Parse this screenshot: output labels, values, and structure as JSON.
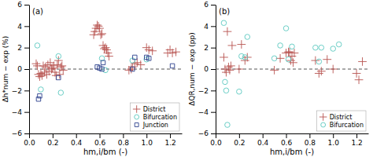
{
  "chart_data": [
    {
      "type": "scatter",
      "annotations": [
        "(a)"
      ],
      "xlabel": "hm,i/bm (-)",
      "ylabel": "Δh*num − exp (%)",
      "series": [
        {
          "name": "District",
          "color": "#B85450",
          "marker": "plus",
          "x": [
            0.06,
            0.07,
            0.08,
            0.09,
            0.1,
            0.11,
            0.12,
            0.13,
            0.14,
            0.15,
            0.16,
            0.17,
            0.18,
            0.19,
            0.2,
            0.21,
            0.22,
            0.23,
            0.24,
            0.25,
            0.26,
            0.27,
            0.28,
            0.29,
            0.55,
            0.56,
            0.57,
            0.58,
            0.59,
            0.6,
            0.61,
            0.62,
            0.63,
            0.64,
            0.65,
            0.66,
            0.67,
            0.68,
            0.85,
            0.87,
            0.88,
            0.9,
            0.92,
            0.95,
            1.0,
            1.02,
            1.05,
            1.18,
            1.2,
            1.22,
            1.25
          ],
          "values": [
            0.5,
            0.3,
            -0.5,
            -0.7,
            -0.4,
            -0.6,
            0.3,
            -0.3,
            0.2,
            -0.5,
            0.4,
            -0.2,
            0.6,
            0.0,
            0.1,
            0.3,
            -0.3,
            -0.6,
            0.4,
            0.8,
            -0.5,
            0.2,
            0.3,
            -0.1,
            3.2,
            3.5,
            3.8,
            4.1,
            4.0,
            3.8,
            3.2,
            3.3,
            2.2,
            1.9,
            2.0,
            1.8,
            1.5,
            1.2,
            -0.1,
            0.0,
            0.2,
            0.5,
            0.6,
            0.4,
            2.0,
            1.8,
            1.7,
            1.5,
            1.8,
            1.5,
            1.6
          ]
        },
        {
          "name": "Bifurcation",
          "color": "#5BC8C0",
          "marker": "circle",
          "x": [
            0.07,
            0.1,
            0.25,
            0.27,
            0.62,
            0.65,
            0.88,
            1.0
          ],
          "values": [
            2.2,
            -1.9,
            1.2,
            -2.2,
            1.0,
            -0.1,
            0.8,
            0.9
          ]
        },
        {
          "name": "Junction",
          "color": "#2B3F8C",
          "marker": "square",
          "x": [
            0.08,
            0.09,
            0.25,
            0.58,
            0.6,
            0.62,
            0.63,
            0.88,
            0.9,
            1.0,
            1.02,
            1.22
          ],
          "values": [
            -2.8,
            -2.5,
            -0.8,
            0.2,
            0.1,
            0.0,
            0.6,
            0.0,
            1.1,
            1.1,
            1.0,
            0.3
          ]
        }
      ],
      "reference_lines": [
        {
          "y": 0,
          "line_style": "dashed",
          "color": "#555555"
        }
      ],
      "xlim": [
        0,
        1.3
      ],
      "ylim": [
        -6,
        6
      ],
      "xticks": [
        {
          "value": 0,
          "label": "0.0"
        },
        0.2,
        0.4,
        0.6,
        0.8,
        {
          "value": 1.0,
          "label": "1.0"
        },
        1.2
      ],
      "yticks": [
        {
          "value": -6,
          "label": "−6"
        },
        {
          "value": -4,
          "label": "−4"
        },
        {
          "value": -2,
          "label": "−2"
        },
        0,
        2,
        4,
        6
      ],
      "grid": false,
      "legend": "lower right"
    },
    {
      "type": "scatter",
      "annotations": [
        "(b)"
      ],
      "xlabel": "hm,i/bm (-)",
      "ylabel": "ΔQR,num − exp (pp)",
      "series": [
        {
          "name": "District",
          "color": "#B85450",
          "marker": "plus",
          "x": [
            0.07,
            0.08,
            0.09,
            0.1,
            0.11,
            0.12,
            0.13,
            0.14,
            0.2,
            0.22,
            0.25,
            0.27,
            0.5,
            0.55,
            0.6,
            0.62,
            0.63,
            0.64,
            0.65,
            0.66,
            0.67,
            0.85,
            0.88,
            0.9,
            0.95,
            1.0,
            1.2,
            1.22,
            1.25
          ],
          "values": [
            1.1,
            0.0,
            -0.3,
            3.5,
            0.2,
            -0.1,
            0.3,
            2.2,
            0.0,
            2.3,
            0.8,
            1.1,
            -0.1,
            1.0,
            1.5,
            1.6,
            1.6,
            0.8,
            1.2,
            0.6,
            1.5,
            0.8,
            -0.4,
            -0.2,
            0.9,
            0.0,
            -0.4,
            -1.0,
            0.7
          ]
        },
        {
          "name": "Bifurcation",
          "color": "#5BC8C0",
          "marker": "circle",
          "x": [
            0.07,
            0.08,
            0.09,
            0.1,
            0.2,
            0.22,
            0.25,
            0.27,
            0.5,
            0.55,
            0.6,
            0.62,
            0.65,
            0.85,
            0.88,
            0.9,
            1.0,
            1.05
          ],
          "values": [
            4.3,
            -1.2,
            -2.0,
            -5.2,
            -2.1,
            1.2,
            1.1,
            3.0,
            1.0,
            2.2,
            3.8,
            0.9,
            2.1,
            2.0,
            0.7,
            2.0,
            1.9,
            2.3
          ]
        }
      ],
      "reference_lines": [
        {
          "y": 0,
          "line_style": "dashed",
          "color": "#555555"
        }
      ],
      "xlim": [
        0,
        1.3
      ],
      "ylim": [
        -6,
        6
      ],
      "xticks": [
        {
          "value": 0,
          "label": "0.0"
        },
        0.2,
        0.4,
        0.6,
        0.8,
        {
          "value": 1.0,
          "label": "1.0"
        },
        1.2
      ],
      "yticks": [
        {
          "value": -6,
          "label": "−6"
        },
        {
          "value": -4,
          "label": "−4"
        },
        {
          "value": -2,
          "label": "−2"
        },
        0,
        2,
        4,
        6
      ],
      "grid": false,
      "legend": "lower right"
    }
  ]
}
